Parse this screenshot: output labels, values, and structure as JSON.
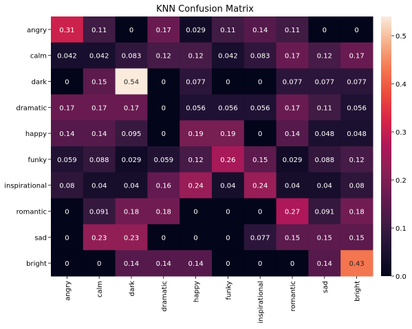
{
  "chart_data": {
    "type": "heatmap",
    "title": "KNN Confusion Matrix",
    "xlabel": "",
    "ylabel": "",
    "x_categories": [
      "angry",
      "calm",
      "dark",
      "dramatic",
      "happy",
      "funky",
      "inspirational",
      "romantic",
      "sad",
      "bright"
    ],
    "y_categories": [
      "angry",
      "calm",
      "dark",
      "dramatic",
      "happy",
      "funky",
      "inspirational",
      "romantic",
      "sad",
      "bright"
    ],
    "cells": [
      [
        "0.31",
        "0.11",
        "0",
        "0.17",
        "0.029",
        "0.11",
        "0.14",
        "0.11",
        "0",
        "0"
      ],
      [
        "0.042",
        "0.042",
        "0.083",
        "0.12",
        "0.12",
        "0.042",
        "0.083",
        "0.17",
        "0.12",
        "0.17"
      ],
      [
        "0",
        "0.15",
        "0.54",
        "0",
        "0.077",
        "0",
        "0",
        "0.077",
        "0.077",
        "0.077"
      ],
      [
        "0.17",
        "0.17",
        "0.17",
        "0",
        "0.056",
        "0.056",
        "0.056",
        "0.17",
        "0.11",
        "0.056"
      ],
      [
        "0.14",
        "0.14",
        "0.095",
        "0",
        "0.19",
        "0.19",
        "0",
        "0.14",
        "0.048",
        "0.048"
      ],
      [
        "0.059",
        "0.088",
        "0.029",
        "0.059",
        "0.12",
        "0.26",
        "0.15",
        "0.029",
        "0.088",
        "0.12"
      ],
      [
        "0.08",
        "0.04",
        "0.04",
        "0.16",
        "0.24",
        "0.04",
        "0.24",
        "0.04",
        "0.04",
        "0.08"
      ],
      [
        "0",
        "0.091",
        "0.18",
        "0.18",
        "0",
        "0",
        "0",
        "0.27",
        "0.091",
        "0.18"
      ],
      [
        "0",
        "0.23",
        "0.23",
        "0",
        "0",
        "0",
        "0.077",
        "0.15",
        "0.15",
        "0.15"
      ],
      [
        "0",
        "0",
        "0.14",
        "0.14",
        "0.14",
        "0",
        "0",
        "0",
        "0.14",
        "0.43"
      ]
    ],
    "colorbar": {
      "range": [
        0,
        0.54
      ],
      "ticks": [
        "0.0",
        "0.1",
        "0.2",
        "0.3",
        "0.4",
        "0.5"
      ],
      "colormap": "rocket"
    },
    "grid": false,
    "legend": "colorbar-right"
  }
}
